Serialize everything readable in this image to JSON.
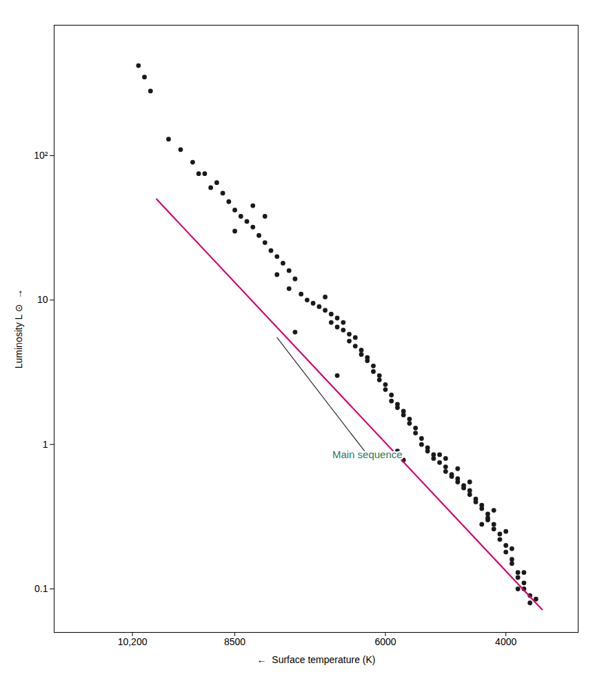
{
  "chart_data": {
    "type": "scatter",
    "x_label": "←  Surface temperature (K)",
    "y_label": "Luminosity L ⊙  →",
    "log": "y",
    "grid": false,
    "xlim": [
      11500,
      2800
    ],
    "ylim": [
      0.05,
      800
    ],
    "xticks": [
      {
        "value": 10200,
        "label": "10,200"
      },
      8500,
      6000,
      4000
    ],
    "yticks": [
      0.1,
      1,
      10,
      {
        "value": 100,
        "label": "10²"
      }
    ],
    "series": [
      {
        "type": "scatter",
        "color": "#1a1a1a",
        "marker": "circle",
        "x": [
          10100,
          10000,
          9900,
          9600,
          9400,
          9200,
          9000,
          8800,
          8700,
          8600,
          8500,
          8400,
          8300,
          8200,
          8100,
          8000,
          7900,
          7800,
          7700,
          7600,
          7500,
          7600,
          7400,
          7300,
          7200,
          7100,
          7000,
          6900,
          6900,
          6800,
          6800,
          6700,
          6600,
          6600,
          6500,
          6500,
          6400,
          6400,
          6300,
          6300,
          6200,
          6200,
          6100,
          6100,
          6000,
          6000,
          5900,
          5900,
          5800,
          5800,
          5700,
          5700,
          5600,
          5600,
          5500,
          5500,
          5400,
          5400,
          5300,
          5300,
          5200,
          5200,
          5100,
          5000,
          5000,
          4900,
          4900,
          4800,
          4800,
          4700,
          4700,
          4600,
          4600,
          4500,
          4500,
          4400,
          4400,
          4300,
          4300,
          4200,
          4200,
          4100,
          4100,
          4000,
          4000,
          3900,
          3900,
          3800,
          3800,
          3700,
          3700,
          3600,
          3500,
          7500,
          6800,
          8500,
          7800,
          8200,
          8000,
          9100,
          8900,
          7000,
          6700,
          5700,
          5800,
          4800,
          4600,
          4200,
          4000,
          3900,
          3700,
          5000,
          5100,
          4300,
          4400,
          3800,
          3600
        ],
        "values": [
          420,
          350,
          280,
          130,
          110,
          90,
          75,
          65,
          55,
          48,
          42,
          38,
          35,
          32,
          28,
          25,
          22,
          20,
          18,
          16,
          14,
          12,
          11,
          10,
          9.5,
          9.0,
          8.5,
          8.0,
          7.0,
          7.5,
          6.5,
          6.2,
          5.8,
          5.2,
          5.5,
          4.8,
          4.5,
          4.2,
          4.0,
          3.8,
          3.5,
          3.2,
          3.0,
          2.8,
          2.6,
          2.4,
          2.2,
          2.0,
          1.9,
          1.8,
          1.7,
          1.6,
          1.5,
          1.4,
          1.3,
          1.2,
          1.1,
          1.0,
          0.95,
          0.9,
          0.85,
          0.8,
          0.75,
          0.7,
          0.65,
          0.62,
          0.6,
          0.58,
          0.55,
          0.52,
          0.5,
          0.48,
          0.45,
          0.42,
          0.4,
          0.38,
          0.36,
          0.33,
          0.31,
          0.28,
          0.26,
          0.24,
          0.22,
          0.2,
          0.18,
          0.16,
          0.15,
          0.13,
          0.12,
          0.11,
          0.1,
          0.09,
          0.085,
          6.0,
          3.0,
          30,
          15,
          45,
          38,
          75,
          60,
          10.5,
          7.0,
          0.78,
          0.9,
          0.68,
          0.55,
          0.35,
          0.25,
          0.19,
          0.13,
          0.8,
          0.85,
          0.3,
          0.28,
          0.1,
          0.08
        ]
      },
      {
        "type": "line",
        "color": "#d4006e",
        "line_style": "solid",
        "x": [
          9800,
          3400
        ],
        "values": [
          50,
          0.072
        ]
      }
    ],
    "annotations": [
      {
        "text": "Main sequence",
        "x": 6300,
        "y": 0.85,
        "arrow_to": [
          7800,
          5.5
        ],
        "color": "#2d7a5a"
      }
    ]
  }
}
